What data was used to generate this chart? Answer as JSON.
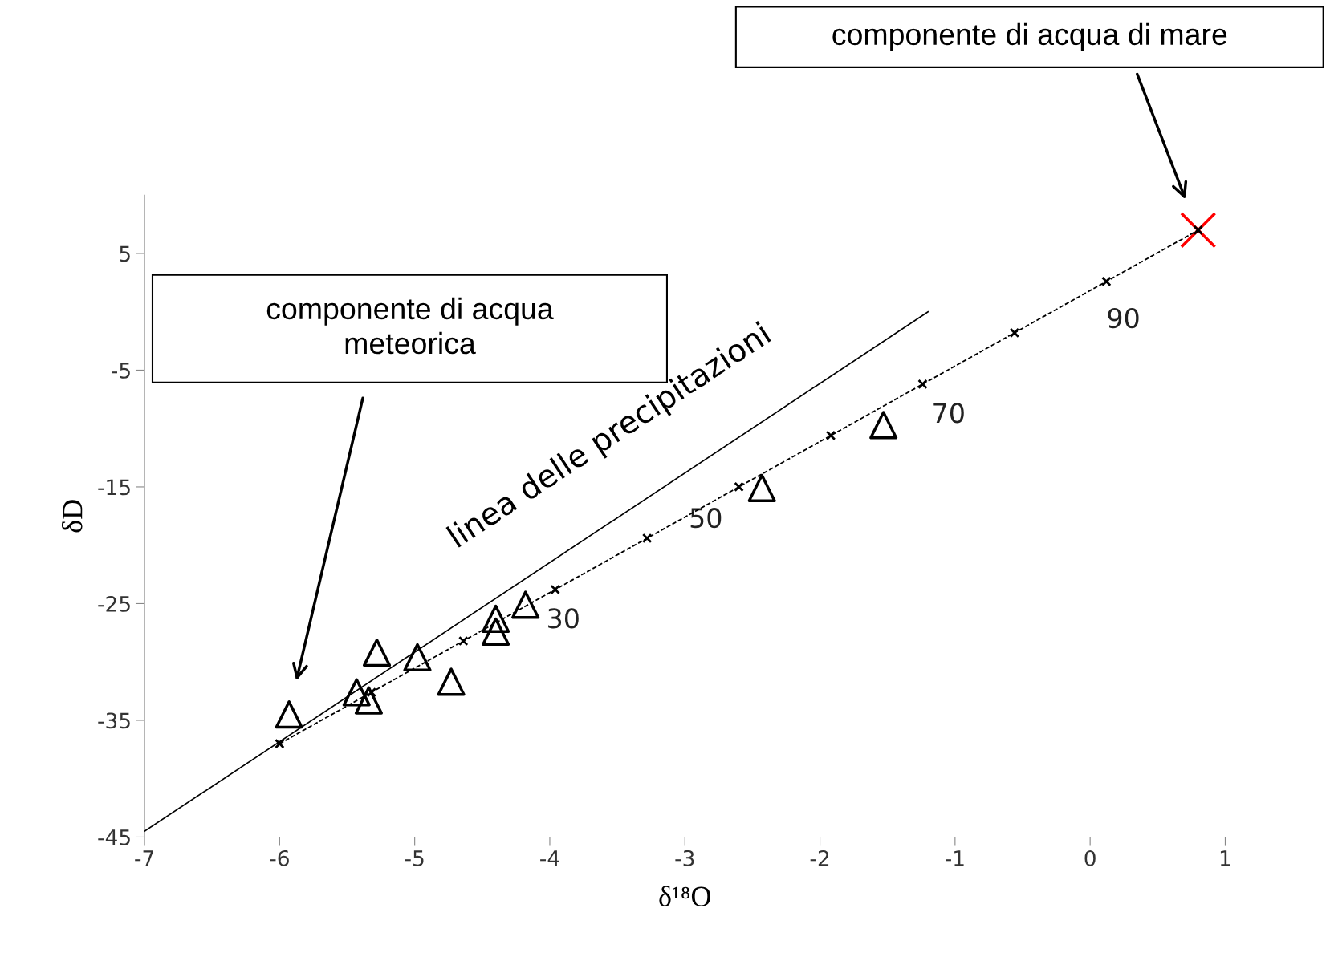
{
  "chart_data": {
    "type": "scatter",
    "xlabel": "δ¹⁸O",
    "ylabel": "δD",
    "xlim": [
      -7,
      1
    ],
    "xticks": [
      -7,
      -6,
      -5,
      -4,
      -3,
      -2,
      -1,
      0,
      1
    ],
    "ylim": [
      -45,
      10
    ],
    "yticks": [
      -45,
      -35,
      -25,
      -15,
      -5,
      5
    ],
    "grid": false,
    "legend": false,
    "series": [
      {
        "type": "line",
        "color": "#000000",
        "line_style": "solid",
        "marker": "none",
        "x": [
          -7,
          -1.2
        ],
        "values": [
          -44.5,
          0
        ]
      },
      {
        "type": "line",
        "color": "#000000",
        "line_style": "dashed",
        "marker": "cross",
        "x": [
          -6,
          -5.32,
          -4.64,
          -3.96,
          -3.28,
          -2.6,
          -1.92,
          -1.24,
          -0.56,
          0.12,
          0.8
        ],
        "values": [
          -37,
          -32.6,
          -28.2,
          -23.8,
          -19.4,
          -15,
          -10.6,
          -6.2,
          -1.8,
          2.6,
          7
        ]
      },
      {
        "color": "#000000",
        "marker": "triangle",
        "x": [
          -5.93,
          -5.28,
          -5.43,
          -5.34,
          -4.98,
          -4.73,
          -4.4,
          -4.4,
          -4.18,
          -2.43,
          -1.53
        ],
        "values": [
          -34.5,
          -29.2,
          -32.6,
          -33.3,
          -29.6,
          -31.7,
          -26.3,
          -27.4,
          -25.1,
          -15.1,
          -9.7
        ]
      },
      {
        "color": "#ff0000",
        "marker": "cross",
        "x": [
          0.8
        ],
        "values": [
          7
        ]
      }
    ],
    "annotations": [
      "linea delle precipitazioni",
      {
        "text": "30",
        "x": -3.96,
        "y": -23.8
      },
      {
        "text": "50",
        "x": -2.6,
        "y": -15
      },
      {
        "text": "70",
        "x": -1.24,
        "y": -6.2
      },
      {
        "text": "90",
        "x": 0.12,
        "y": 2.6
      },
      "componente di acqua\nmeteorica",
      "componente di acqua di mare"
    ]
  }
}
